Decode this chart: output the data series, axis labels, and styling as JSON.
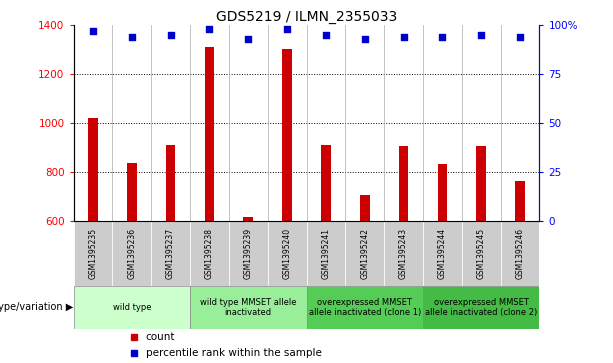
{
  "title": "GDS5219 / ILMN_2355033",
  "samples": [
    "GSM1395235",
    "GSM1395236",
    "GSM1395237",
    "GSM1395238",
    "GSM1395239",
    "GSM1395240",
    "GSM1395241",
    "GSM1395242",
    "GSM1395243",
    "GSM1395244",
    "GSM1395245",
    "GSM1395246"
  ],
  "counts": [
    1020,
    838,
    910,
    1310,
    615,
    1305,
    910,
    705,
    905,
    830,
    905,
    762
  ],
  "percentiles": [
    97,
    94,
    95,
    98,
    93,
    98,
    95,
    93,
    94,
    94,
    95,
    94
  ],
  "ylim_left": [
    600,
    1400
  ],
  "ylim_right": [
    0,
    100
  ],
  "yticks_left": [
    600,
    800,
    1000,
    1200,
    1400
  ],
  "yticks_right": [
    0,
    25,
    50,
    75,
    100
  ],
  "bar_color": "#cc0000",
  "dot_color": "#0000cc",
  "bar_width": 0.25,
  "groups": [
    {
      "label": "wild type",
      "span": [
        0,
        3
      ],
      "color": "#ccffcc"
    },
    {
      "label": "wild type MMSET allele\ninactivated",
      "span": [
        3,
        6
      ],
      "color": "#99ee99"
    },
    {
      "label": "overexpressed MMSET\nallele inactivated (clone 1)",
      "span": [
        6,
        9
      ],
      "color": "#55cc55"
    },
    {
      "label": "overexpressed MMSET\nallele inactivated (clone 2)",
      "span": [
        9,
        12
      ],
      "color": "#44bb44"
    }
  ],
  "sample_bg_color": "#cccccc",
  "genotype_label": "genotype/variation",
  "legend_items": [
    {
      "label": "count",
      "color": "#cc0000"
    },
    {
      "label": "percentile rank within the sample",
      "color": "#0000cc"
    }
  ]
}
